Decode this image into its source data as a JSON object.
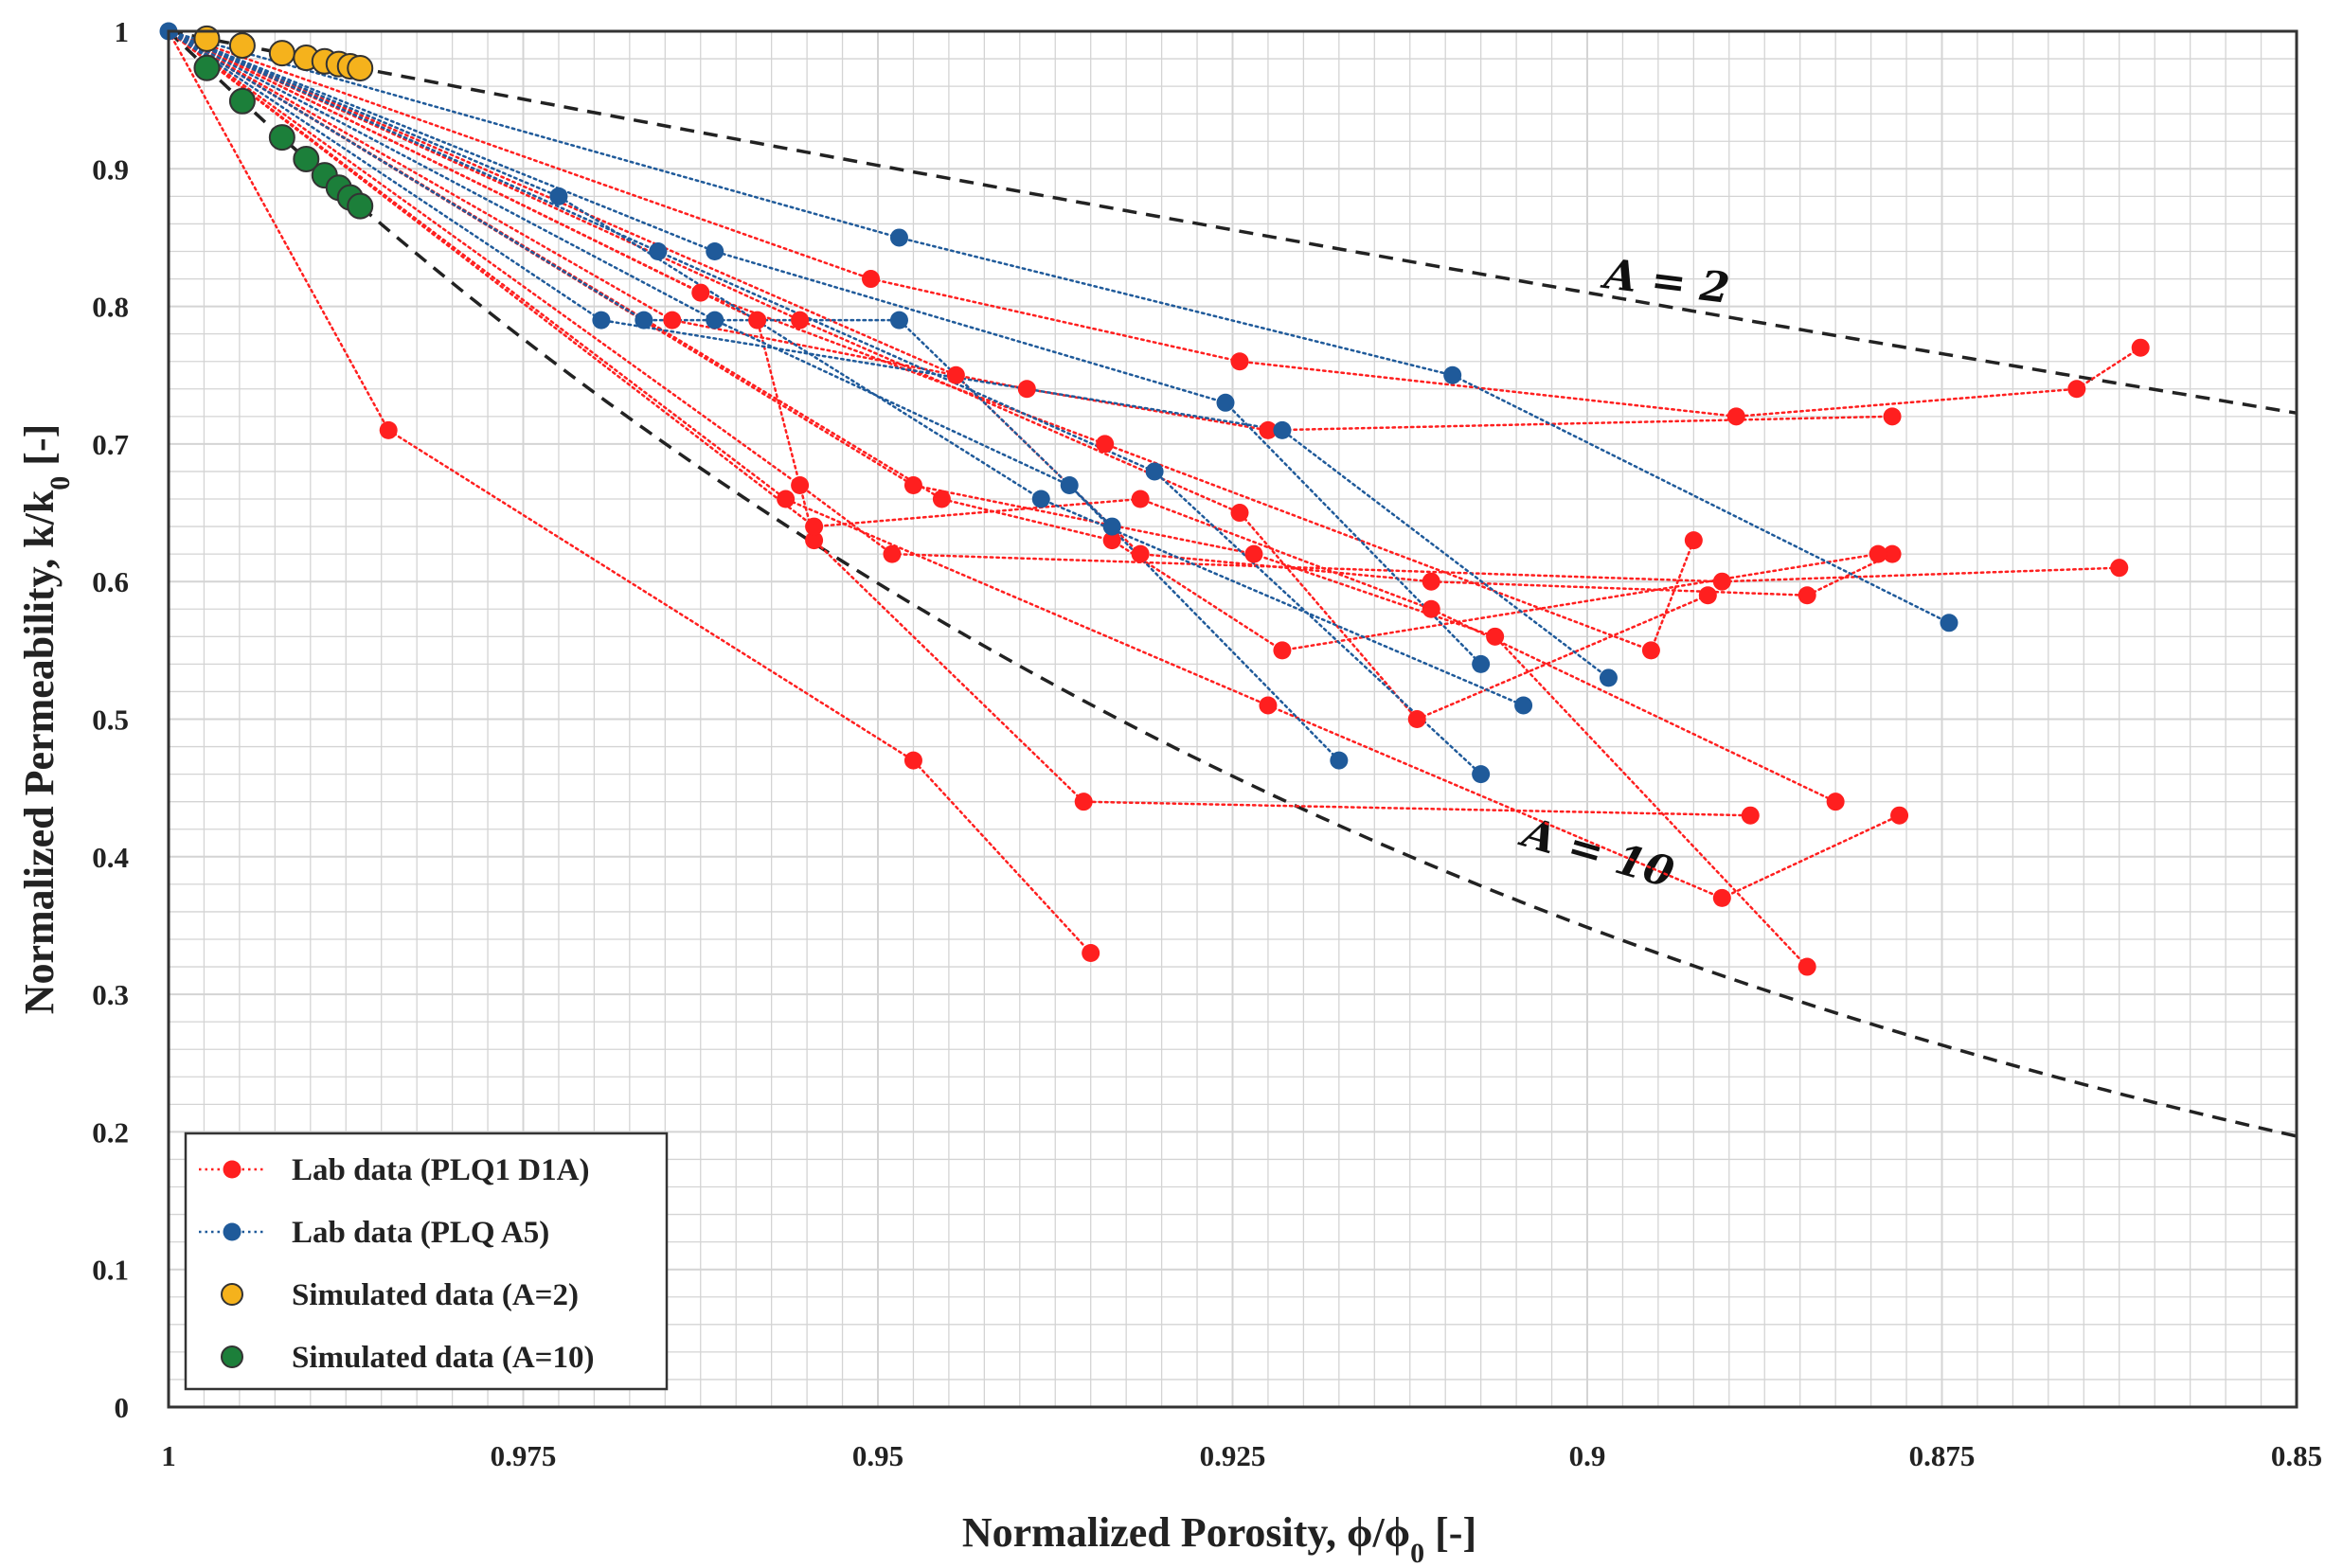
{
  "chart_data": {
    "type": "scatter",
    "xlabel": "Normalized Porosity, ϕ/ϕ0 [-]",
    "xlabel_parts": {
      "main": "Normalized Porosity, ϕ/ϕ",
      "sub": "0",
      "end": " [-]"
    },
    "ylabel": "Normalized Permeability, k/k0 [-]",
    "ylabel_parts": {
      "main": "Normalized Permeability, k/k",
      "sub": "0",
      "end": " [-]"
    },
    "xlim": [
      1,
      0.85
    ],
    "ylim": [
      0,
      1
    ],
    "x_reversed": true,
    "grid": true,
    "x_ticks": [
      1,
      0.975,
      0.95,
      0.925,
      0.9,
      0.875,
      0.85
    ],
    "x_tick_labels": [
      "1",
      "0.975",
      "0.95",
      "0.925",
      "0.9",
      "0.875",
      "0.85"
    ],
    "y_ticks": [
      0,
      0.1,
      0.2,
      0.3,
      0.4,
      0.5,
      0.6,
      0.7,
      0.8,
      0.9,
      1
    ],
    "y_tick_labels": [
      "0",
      "0.1",
      "0.2",
      "0.3",
      "0.4",
      "0.5",
      "0.6",
      "0.7",
      "0.8",
      "0.9",
      "1"
    ],
    "reference_lines": [
      {
        "name": "A = 2",
        "label": "A = 2",
        "A": 2,
        "color": "#222222",
        "label_at": [
          0.8945,
          0.808
        ]
      },
      {
        "name": "A = 10",
        "label": "A = 10",
        "A": 10,
        "color": "#222222",
        "label_at": [
          0.8995,
          0.393
        ]
      }
    ],
    "series": [
      {
        "name": "Lab data (PLQ1 D1A)",
        "color": "#ff1f1f",
        "style": "dotted-line-marker",
        "paths": [
          [
            [
              1,
              1
            ],
            [
              0.9845,
              0.71
            ],
            [
              0.9475,
              0.47
            ],
            [
              0.935,
              0.33
            ]
          ],
          [
            [
              1,
              1
            ],
            [
              0.9585,
              0.79
            ],
            [
              0.9545,
              0.63
            ],
            [
              0.9355,
              0.44
            ],
            [
              0.8885,
              0.43
            ]
          ],
          [
            [
              1,
              1
            ],
            [
              0.9625,
              0.81
            ],
            [
              0.934,
              0.7
            ],
            [
              0.8955,
              0.55
            ],
            [
              0.8925,
              0.63
            ]
          ],
          [
            [
              1,
              1
            ],
            [
              0.9555,
              0.67
            ],
            [
              0.949,
              0.62
            ],
            [
              0.8905,
              0.6
            ],
            [
              0.8625,
              0.61
            ]
          ],
          [
            [
              1,
              1
            ],
            [
              0.9645,
              0.79
            ],
            [
              0.9395,
              0.74
            ],
            [
              0.9225,
              0.71
            ],
            [
              0.8785,
              0.72
            ]
          ],
          [
            [
              1,
              1
            ],
            [
              0.9545,
              0.64
            ],
            [
              0.9315,
              0.66
            ],
            [
              0.911,
              0.58
            ],
            [
              0.8825,
              0.44
            ]
          ],
          [
            [
              1,
              1
            ],
            [
              0.9565,
              0.66
            ],
            [
              0.9225,
              0.51
            ],
            [
              0.8905,
              0.37
            ],
            [
              0.878,
              0.43
            ]
          ],
          [
            [
              1,
              1
            ],
            [
              0.9555,
              0.79
            ],
            [
              0.9245,
              0.65
            ],
            [
              0.912,
              0.5
            ],
            [
              0.8915,
              0.59
            ]
          ],
          [
            [
              1,
              1
            ],
            [
              0.9505,
              0.82
            ],
            [
              0.9245,
              0.76
            ],
            [
              0.8895,
              0.72
            ],
            [
              0.8655,
              0.74
            ],
            [
              0.861,
              0.77
            ]
          ],
          [
            [
              1,
              1
            ],
            [
              0.9445,
              0.75
            ],
            [
              0.9315,
              0.62
            ],
            [
              0.911,
              0.6
            ],
            [
              0.8845,
              0.59
            ],
            [
              0.8785,
              0.62
            ]
          ],
          [
            [
              1,
              1
            ],
            [
              0.9455,
              0.66
            ],
            [
              0.9335,
              0.63
            ],
            [
              0.9215,
              0.55
            ],
            [
              0.8795,
              0.62
            ]
          ],
          [
            [
              1,
              1
            ],
            [
              0.9475,
              0.67
            ],
            [
              0.9235,
              0.62
            ],
            [
              0.9065,
              0.56
            ],
            [
              0.8845,
              0.32
            ]
          ]
        ]
      },
      {
        "name": "Lab data (PLQ A5)",
        "color": "#1f5a9a",
        "style": "dotted-line-marker",
        "paths": [
          [
            [
              1,
              1
            ],
            [
              0.9485,
              0.85
            ],
            [
              0.9095,
              0.75
            ],
            [
              0.8745,
              0.57
            ]
          ],
          [
            [
              1,
              1
            ],
            [
              0.9615,
              0.84
            ],
            [
              0.9255,
              0.73
            ],
            [
              0.9075,
              0.54
            ]
          ],
          [
            [
              1,
              1
            ],
            [
              0.9655,
              0.84
            ],
            [
              0.9305,
              0.68
            ],
            [
              0.9075,
              0.46
            ]
          ],
          [
            [
              1,
              1
            ],
            [
              0.9725,
              0.88
            ],
            [
              0.9385,
              0.66
            ],
            [
              0.9045,
              0.51
            ]
          ],
          [
            [
              1,
              1
            ],
            [
              0.9695,
              0.79
            ],
            [
              0.9215,
              0.71
            ],
            [
              0.8985,
              0.53
            ]
          ],
          [
            [
              1,
              1
            ],
            [
              0.9665,
              0.79
            ],
            [
              0.9485,
              0.79
            ],
            [
              0.9335,
              0.64
            ]
          ],
          [
            [
              1,
              1
            ],
            [
              0.9615,
              0.79
            ],
            [
              0.9365,
              0.67
            ],
            [
              0.9175,
              0.47
            ]
          ]
        ]
      },
      {
        "name": "Simulated data (A=2)",
        "color": "#f5b21c",
        "style": "marker",
        "A": 2,
        "x": [
          0.9973,
          0.9948,
          0.992,
          0.9903,
          0.989,
          0.988,
          0.9872,
          0.9865
        ]
      },
      {
        "name": "Simulated data (A=10)",
        "color": "#1c7f3a",
        "style": "marker",
        "A": 10,
        "x": [
          0.9973,
          0.9948,
          0.992,
          0.9903,
          0.989,
          0.988,
          0.9872,
          0.9865
        ]
      }
    ],
    "legend": {
      "position": "bottom-left",
      "entries": [
        "Lab data (PLQ1 D1A)",
        "Lab data (PLQ A5)",
        "Simulated data (A=2)",
        "Simulated data (A=10)"
      ]
    }
  }
}
